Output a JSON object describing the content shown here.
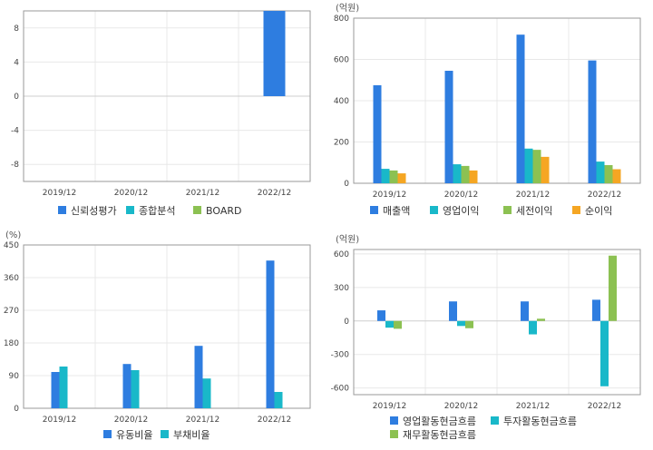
{
  "chart_data": [
    {
      "type": "bar",
      "unit_label": "",
      "categories": [
        "2019/12",
        "2020/12",
        "2021/12",
        "2022/12"
      ],
      "ylim": [
        -10,
        10
      ],
      "yticks": [
        8,
        4,
        0,
        -4,
        -8
      ],
      "ytick_labels": [
        "8",
        "4",
        "0",
        "-4",
        "-8"
      ],
      "grid": true,
      "legend_position": "bottom",
      "series": [
        {
          "name": "신뢰성평가",
          "color": "#2e7de0",
          "values": [
            null,
            null,
            null,
            10
          ]
        },
        {
          "name": "종합분석",
          "color": "#19b8c9",
          "values": [
            null,
            null,
            null,
            null
          ]
        },
        {
          "name": "BOARD",
          "color": "#8cc152",
          "values": [
            null,
            null,
            null,
            null
          ]
        }
      ]
    },
    {
      "type": "bar",
      "unit_label": "(억원)",
      "categories": [
        "2019/12",
        "2020/12",
        "2021/12",
        "2022/12"
      ],
      "ylim": [
        0,
        800
      ],
      "yticks": [
        800,
        600,
        400,
        200,
        0
      ],
      "ytick_labels": [
        "800",
        "600",
        "400",
        "200",
        "0"
      ],
      "grid": true,
      "legend_position": "bottom",
      "series": [
        {
          "name": "매출액",
          "color": "#2e7de0",
          "values": [
            475,
            545,
            720,
            595
          ]
        },
        {
          "name": "영업이익",
          "color": "#19b8c9",
          "values": [
            70,
            92,
            168,
            105
          ]
        },
        {
          "name": "세전이익",
          "color": "#8cc152",
          "values": [
            62,
            84,
            162,
            88
          ]
        },
        {
          "name": "순이익",
          "color": "#f5a623",
          "values": [
            48,
            62,
            128,
            68
          ]
        }
      ]
    },
    {
      "type": "bar",
      "unit_label": "(%)",
      "categories": [
        "2019/12",
        "2020/12",
        "2021/12",
        "2022/12"
      ],
      "ylim": [
        0,
        450
      ],
      "yticks": [
        450,
        360,
        270,
        180,
        90,
        0
      ],
      "ytick_labels": [
        "450",
        "360",
        "270",
        "180",
        "90",
        "0"
      ],
      "grid": true,
      "legend_position": "bottom",
      "series": [
        {
          "name": "유동비율",
          "color": "#2e7de0",
          "values": [
            100,
            122,
            172,
            407
          ]
        },
        {
          "name": "부채비율",
          "color": "#19b8c9",
          "values": [
            115,
            105,
            82,
            45
          ]
        }
      ]
    },
    {
      "type": "bar",
      "unit_label": "(억원)",
      "categories": [
        "2019/12",
        "2020/12",
        "2021/12",
        "2022/12"
      ],
      "ylim": [
        -660,
        640
      ],
      "yticks": [
        600,
        300,
        0,
        -300,
        -600
      ],
      "ytick_labels": [
        "600",
        "300",
        "0",
        "-300",
        "-600"
      ],
      "grid": true,
      "legend_position": "bottom",
      "series": [
        {
          "name": "영업활동현금흐름",
          "color": "#2e7de0",
          "values": [
            95,
            175,
            175,
            190
          ]
        },
        {
          "name": "투자활동현금흐름",
          "color": "#19b8c9",
          "values": [
            -60,
            -45,
            -120,
            -585
          ]
        },
        {
          "name": "재무활동현금흐름",
          "color": "#8cc152",
          "values": [
            -70,
            -65,
            20,
            585
          ]
        }
      ]
    }
  ]
}
